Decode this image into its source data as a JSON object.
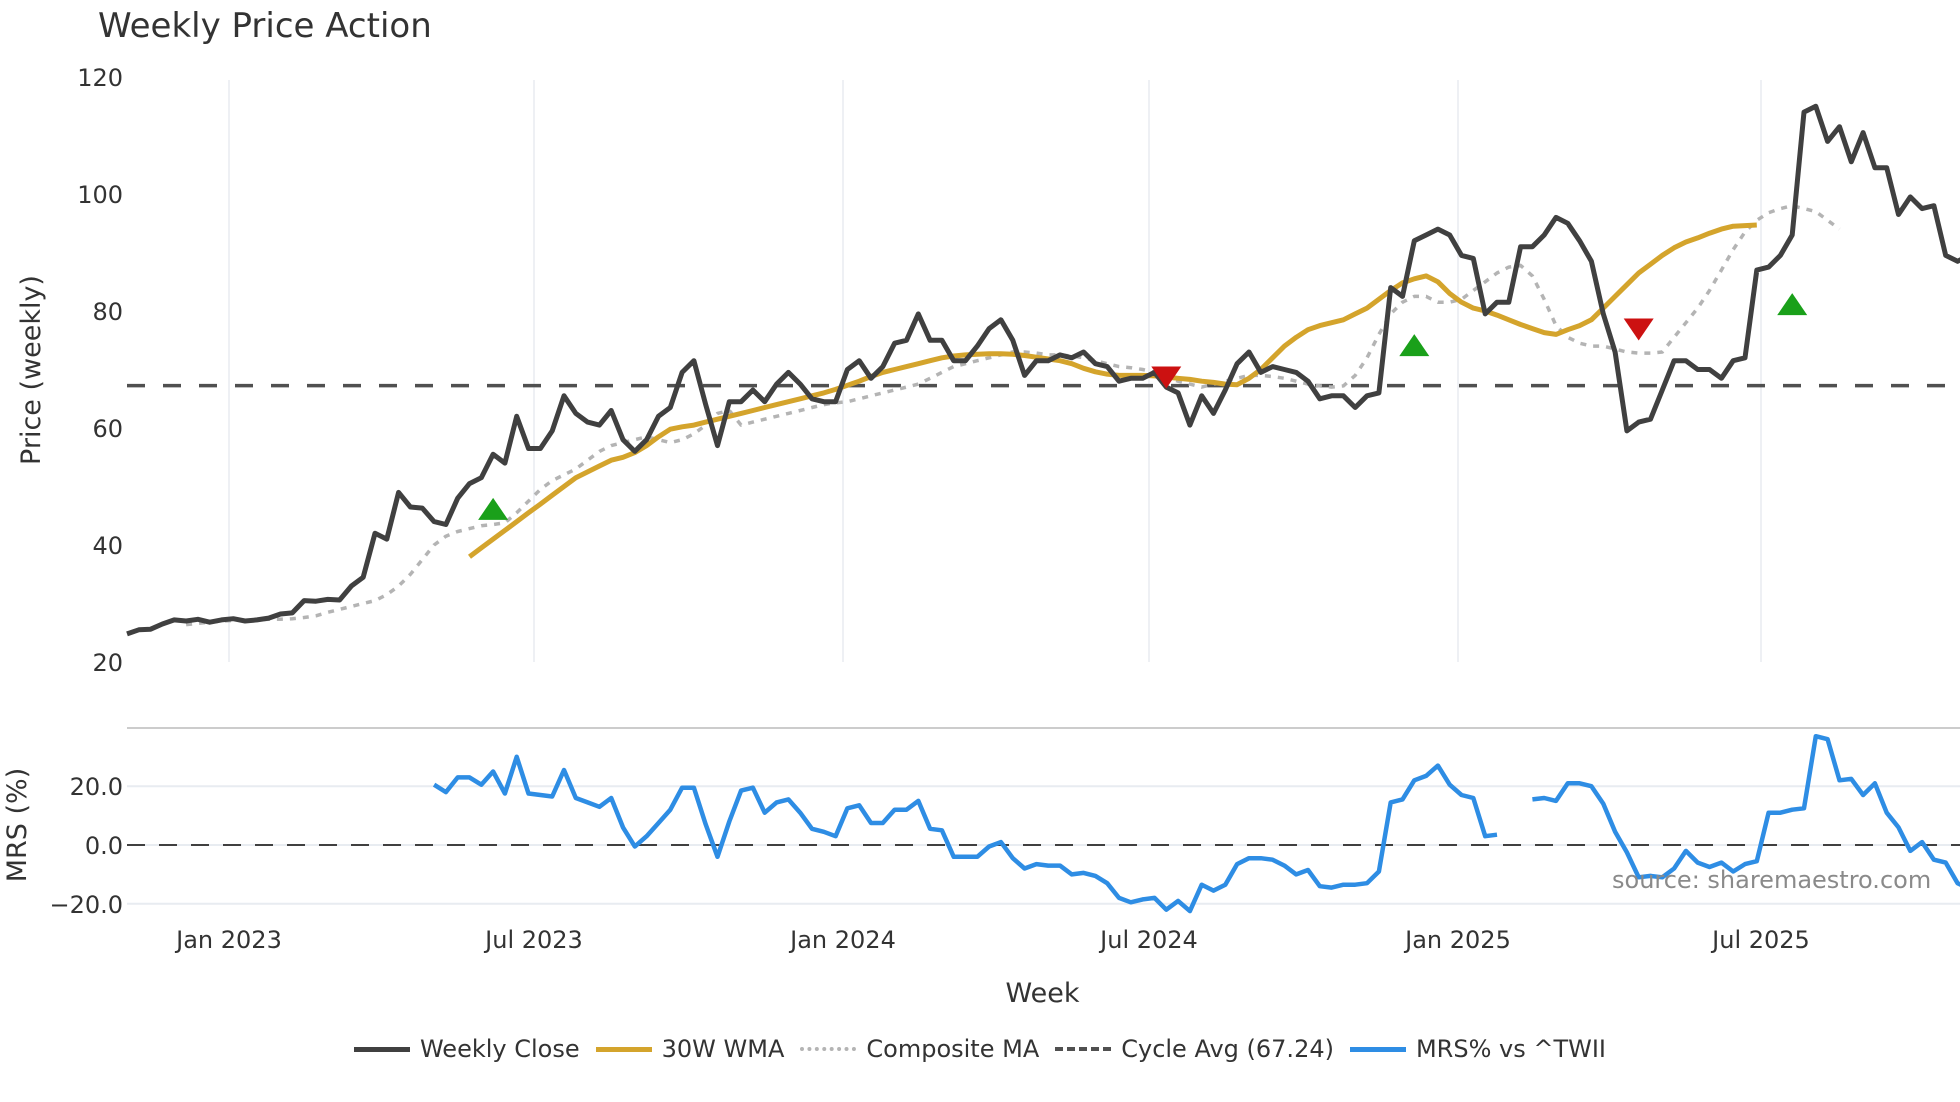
{
  "title": "Weekly Price Action",
  "xlabel": "Week",
  "watermark": "source: sharemaestro.com",
  "colors": {
    "close": "#404040",
    "wma": "#d4a42c",
    "composite": "#b4b4b4",
    "cycle": "#505050",
    "mrs": "#2e8de4",
    "buy": "#1aa01a",
    "sell": "#cc1111",
    "grid": "#e8ecf1"
  },
  "legend": [
    {
      "label": "Weekly Close",
      "key": "close",
      "style": "solid"
    },
    {
      "label": "30W WMA",
      "key": "wma",
      "style": "solid"
    },
    {
      "label": "Composite MA",
      "key": "composite",
      "style": "dotted"
    },
    {
      "label": "Cycle Avg (67.24)",
      "key": "cycle",
      "style": "dashed"
    },
    {
      "label": "MRS% vs ^TWII",
      "key": "mrs",
      "style": "solid"
    }
  ],
  "chart_data": [
    {
      "type": "line",
      "title": "Weekly Price Action",
      "xlabel": "Week",
      "ylabel": "Price (weekly)",
      "ylim": [
        20,
        120
      ],
      "yticks": [
        20,
        40,
        60,
        80,
        100,
        120
      ],
      "xticks": [
        "Jan 2023",
        "Jul 2023",
        "Jan 2024",
        "Jul 2024",
        "Jan 2025",
        "Jul 2025"
      ],
      "x_range": [
        "2022-11 (approx)",
        "2025-10 (approx)"
      ],
      "grid": "vertical",
      "cycle_avg": 67.24,
      "series": [
        {
          "name": "Weekly Close",
          "start_index": 0,
          "values": [
            24.8,
            25.5,
            25.6,
            26.5,
            27.2,
            27.0,
            27.3,
            26.8,
            27.2,
            27.4,
            27.0,
            27.2,
            27.5,
            28.2,
            28.4,
            30.5,
            30.4,
            30.7,
            30.6,
            33.0,
            34.5,
            42.0,
            41.0,
            49.0,
            46.5,
            46.3,
            44.0,
            43.5,
            48.0,
            50.5,
            51.5,
            55.5,
            54.0,
            62.0,
            56.5,
            56.5,
            59.5,
            65.5,
            62.5,
            61.0,
            60.5,
            63.0,
            58.0,
            56.0,
            58.0,
            62.0,
            63.5,
            69.5,
            71.5,
            64.0,
            57.0,
            64.5,
            64.5,
            66.5,
            64.5,
            67.5,
            69.5,
            67.5,
            65.0,
            64.5,
            64.5,
            70.0,
            71.5,
            68.5,
            70.5,
            74.5,
            75.0,
            79.5,
            75.0,
            75.0,
            71.5,
            71.5,
            74.0,
            77.0,
            78.5,
            75.0,
            69.0,
            71.5,
            71.5,
            72.5,
            72.0,
            73.0,
            71.0,
            70.5,
            68.0,
            68.5,
            68.5,
            69.5,
            67.0,
            66.0,
            60.5,
            65.5,
            62.5,
            66.5,
            71.0,
            73.0,
            69.5,
            70.5,
            70.0,
            69.5,
            68.0,
            65.0,
            65.5,
            65.5,
            63.5,
            65.5,
            66.0,
            84.0,
            82.5,
            92.0,
            93.0,
            94.0,
            93.0,
            89.5,
            89.0,
            79.5,
            81.5,
            81.5,
            91.0,
            91.0,
            93.0,
            96.0,
            95.0,
            92.0,
            88.5,
            79.5,
            73.0,
            59.5,
            61.0,
            61.5,
            66.5,
            71.5,
            71.5,
            70.0,
            70.0,
            68.5,
            71.5,
            72.0,
            87.0,
            87.5,
            89.5,
            93.0,
            114.0,
            115.0,
            109.0,
            111.5,
            105.5,
            110.5,
            104.5,
            104.5,
            96.5,
            99.5,
            97.5,
            98.0,
            89.5,
            88.5,
            89.5
          ]
        },
        {
          "name": "30W WMA",
          "start_index": 29,
          "values": [
            38.0,
            39.5,
            41.0,
            42.5,
            44.0,
            45.5,
            47.0,
            48.5,
            50.0,
            51.5,
            52.5,
            53.5,
            54.5,
            55.0,
            55.8,
            57.0,
            58.5,
            59.8,
            60.2,
            60.5,
            61.0,
            61.5,
            62.0,
            62.5,
            63.0,
            63.5,
            64.0,
            64.5,
            65.0,
            65.5,
            66.0,
            66.6,
            67.3,
            68.0,
            68.8,
            69.5,
            70.0,
            70.5,
            71.0,
            71.5,
            72.0,
            72.3,
            72.5,
            72.6,
            72.7,
            72.7,
            72.6,
            72.4,
            72.1,
            71.8,
            71.5,
            71.0,
            70.2,
            69.6,
            69.2,
            69.0,
            69.0,
            69.0,
            68.9,
            68.7,
            68.5,
            68.3,
            68.0,
            67.8,
            67.5,
            67.4,
            68.5,
            70.0,
            72.0,
            74.0,
            75.5,
            76.8,
            77.5,
            78.0,
            78.5,
            79.5,
            80.5,
            82.0,
            83.5,
            84.8,
            85.5,
            86.0,
            85.0,
            83.0,
            81.5,
            80.5,
            80.0,
            79.3,
            78.5,
            77.7,
            77.0,
            76.3,
            76.0,
            76.8,
            77.5,
            78.5,
            80.5,
            82.5,
            84.5,
            86.5,
            88.0,
            89.5,
            90.8,
            91.8,
            92.5,
            93.3,
            94.0,
            94.5,
            94.6,
            94.7
          ]
        },
        {
          "name": "Composite MA",
          "start_index": 5,
          "values": [
            26.4,
            26.6,
            26.8,
            27.0,
            27.1,
            27.2,
            27.2,
            27.3,
            27.3,
            27.4,
            27.6,
            27.9,
            28.5,
            29.0,
            29.5,
            30.0,
            30.5,
            31.5,
            33.0,
            35.0,
            37.5,
            40.0,
            41.5,
            42.3,
            42.8,
            43.3,
            43.5,
            43.8,
            45.5,
            47.5,
            49.5,
            51.0,
            52.0,
            53.0,
            54.5,
            56.0,
            57.0,
            57.5,
            58.0,
            58.5,
            58.0,
            57.5,
            58.0,
            59.0,
            60.5,
            62.5,
            63.0,
            60.5,
            61.0,
            61.5,
            62.0,
            62.5,
            63.0,
            63.5,
            64.0,
            64.3,
            64.5,
            65.0,
            65.5,
            66.0,
            66.5,
            67.0,
            67.5,
            68.5,
            69.5,
            70.5,
            71.0,
            71.5,
            72.0,
            72.5,
            73.0,
            73.0,
            72.8,
            72.5,
            72.5,
            72.3,
            72.0,
            71.5,
            71.0,
            70.5,
            70.3,
            70.0,
            69.5,
            68.8,
            68.0,
            67.5,
            67.0,
            67.5,
            68.0,
            68.5,
            69.0,
            69.0,
            68.8,
            68.5,
            68.0,
            67.5,
            67.2,
            67.0,
            67.2,
            69.0,
            72.0,
            76.0,
            79.5,
            81.5,
            82.5,
            82.5,
            81.5,
            81.5,
            82.0,
            83.5,
            85.0,
            86.5,
            87.5,
            87.8,
            86.0,
            82.0,
            77.5,
            75.5,
            74.5,
            74.0,
            74.0,
            73.5,
            73.0,
            72.8,
            72.8,
            73.0,
            75.5,
            78.0,
            80.5,
            83.5,
            87.0,
            90.5,
            93.5,
            95.5,
            96.8,
            97.5,
            98.0,
            97.5,
            97.0,
            95.5,
            94.0
          ]
        },
        {
          "name": "MRS% vs ^TWII",
          "axis": "mrs",
          "start_index": 26,
          "values": [
            20.5,
            18.0,
            23.0,
            23.0,
            20.5,
            25.0,
            17.5,
            30.0,
            17.5,
            17.0,
            16.5,
            25.5,
            16.0,
            14.5,
            13.0,
            16.0,
            6.0,
            -0.5,
            3.0,
            7.5,
            12.0,
            19.5,
            19.5,
            7.0,
            -4.0,
            8.0,
            18.5,
            19.5,
            11.0,
            14.5,
            15.5,
            11.0,
            5.5,
            4.5,
            3.0,
            12.5,
            13.5,
            7.5,
            7.5,
            12.0,
            12.0,
            15.0,
            5.5,
            5.0,
            -4.0,
            -4.0,
            -4.0,
            -0.5,
            1.0,
            -4.5,
            -8.0,
            -6.5,
            -7.0,
            -7.0,
            -10.0,
            -9.5,
            -10.5,
            -13.0,
            -18.0,
            -19.5,
            -18.5,
            -18.0,
            -22.0,
            -19.0,
            -22.5,
            -13.5,
            -15.5,
            -13.5,
            -6.5,
            -4.5,
            -4.5,
            -5.0,
            -7.0,
            -10.0,
            -8.5,
            -14.0,
            -14.5,
            -13.5,
            -13.5,
            -13.0,
            -9.0,
            14.5,
            15.5,
            22.0,
            23.5,
            27.0,
            20.5,
            17.0,
            16.0,
            3.0,
            3.5,
            null,
            null,
            15.5,
            16.0,
            15.0,
            21.0,
            21.0,
            20.0,
            14.0,
            4.5,
            -2.5,
            -11.0,
            -10.5,
            -11.0,
            -8.0,
            -2.0,
            -6.0,
            -7.5,
            -6.0,
            -9.0,
            -6.5,
            -5.5,
            11.0,
            11.0,
            12.0,
            12.5,
            37.0,
            36.0,
            22.0,
            22.5,
            17.0,
            21.0,
            11.0,
            6.0,
            -2.0,
            1.0,
            -5.0,
            -6.0,
            -13.0,
            -15.0,
            -14.5
          ]
        }
      ],
      "signals": [
        {
          "type": "buy",
          "index": 31,
          "price": 46.0
        },
        {
          "type": "sell",
          "index": 88,
          "price": 68.8
        },
        {
          "type": "buy",
          "index": 109,
          "price": 74.0
        },
        {
          "type": "sell",
          "index": 128,
          "price": 77.0
        },
        {
          "type": "buy",
          "index": 141,
          "price": 81.0
        }
      ]
    },
    {
      "type": "line",
      "title": "",
      "ylabel": "MRS (%)",
      "ylim": [
        -24,
        40
      ],
      "yticks": [
        -20.0,
        0.0,
        20.0
      ],
      "ytick_labels": [
        "−20.0",
        "0.0",
        "20.0"
      ],
      "zero_line": "dashed"
    }
  ],
  "axes": {
    "price_ylabel": "Price (weekly)",
    "price_yticks": [
      "20",
      "40",
      "60",
      "80",
      "100",
      "120"
    ],
    "mrs_ylabel": "MRS (%)",
    "mrs_yticks": [
      "20.0",
      "0.0",
      "−20.0"
    ],
    "xticks": [
      "Jan 2023",
      "Jul 2023",
      "Jan 2024",
      "Jul 2024",
      "Jan 2025",
      "Jul 2025"
    ]
  }
}
